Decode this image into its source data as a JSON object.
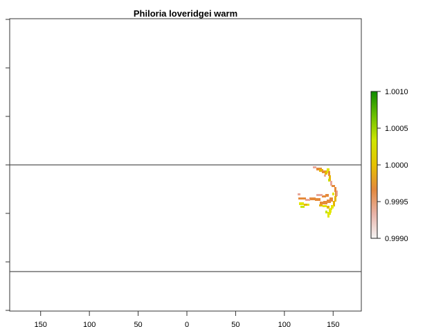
{
  "title": "Philoria loveridgei warm",
  "x_ticks": [
    {
      "value": -150,
      "label": "150"
    },
    {
      "value": -100,
      "label": "100"
    },
    {
      "value": -50,
      "label": "50"
    },
    {
      "value": 0,
      "label": "0"
    },
    {
      "value": 50,
      "label": "50"
    },
    {
      "value": 100,
      "label": "100"
    },
    {
      "value": 150,
      "label": "150"
    }
  ],
  "x_range": [
    -180,
    180
  ],
  "y_range": [
    -90,
    90
  ],
  "y_ticks": [
    -80,
    -60,
    -40,
    -20,
    0,
    20,
    40,
    60,
    80
  ],
  "reference_lines_lat": [
    0,
    -44
  ],
  "legend": {
    "ticks": [
      "1.0010",
      "1.0005",
      "1.0000",
      "0.9995",
      "0.9990"
    ],
    "gradient_colors": [
      "#f4f4f4",
      "#e9b3a8",
      "#e3883c",
      "#e6c200",
      "#cfe600",
      "#6cc000",
      "#0e8a00"
    ]
  },
  "palette": {
    "yellow": "#e3e600",
    "orange": "#e58a3a",
    "gold": "#e6b400",
    "pink": "#e8a79a",
    "lime": "#c6e600"
  }
}
